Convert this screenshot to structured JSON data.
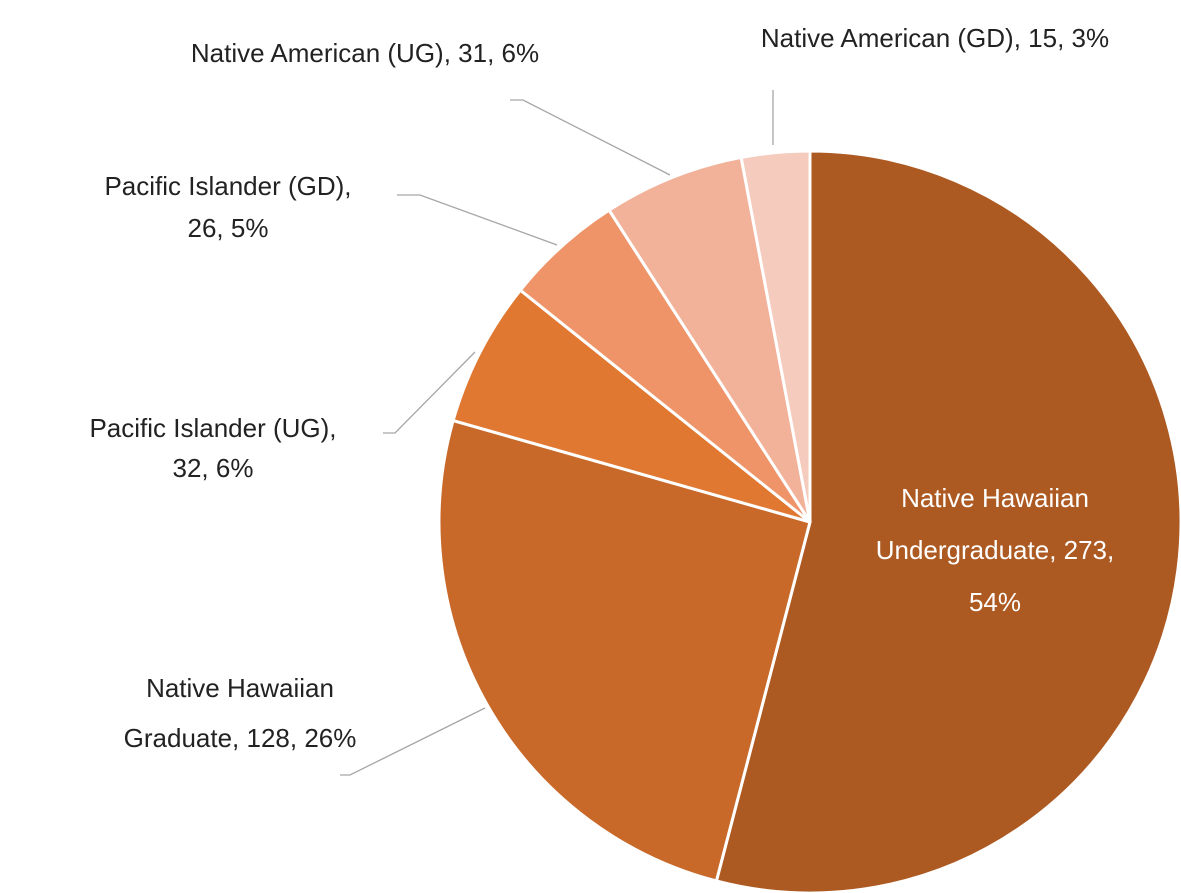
{
  "chart_data": {
    "type": "pie",
    "labels": [
      [
        "Native Hawaiian",
        "Undergraduate, 273,",
        "54%"
      ],
      [
        "Native Hawaiian",
        "Graduate, 128, 26%"
      ],
      [
        "Pacific Islander (UG),",
        "32, 6%"
      ],
      [
        "Pacific Islander (GD),",
        "26, 5%"
      ],
      [
        "Native American (UG), 31, 6%"
      ],
      [
        "Native American (GD), 15, 3%"
      ]
    ],
    "values": [
      273,
      128,
      32,
      26,
      31,
      15
    ],
    "colors": [
      "#ad5a22",
      "#c8692a",
      "#e07832",
      "#ef9468",
      "#f2b29a",
      "#f5cbbd"
    ]
  }
}
